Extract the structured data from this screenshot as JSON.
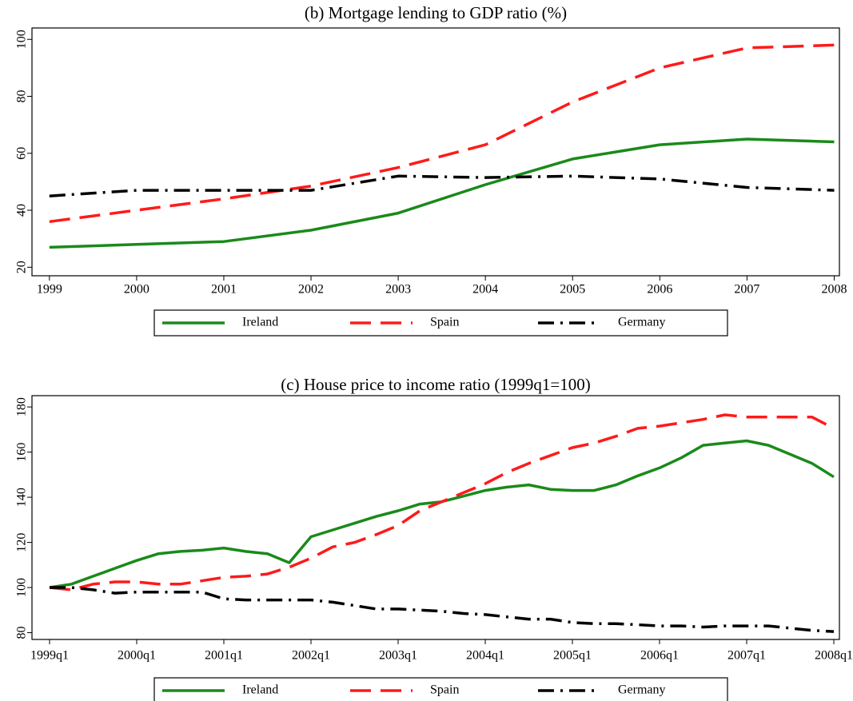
{
  "chart_data": [
    {
      "type": "line",
      "title": "(b) Mortgage lending to GDP ratio (%)",
      "x": [
        1999,
        2000,
        2001,
        2002,
        2003,
        2004,
        2005,
        2006,
        2007,
        2008
      ],
      "xlim": [
        1998.8,
        2008.06
      ],
      "xticks": [
        1999,
        2000,
        2001,
        2002,
        2003,
        2004,
        2005,
        2006,
        2007,
        2008
      ],
      "ylim": [
        17,
        104
      ],
      "yticks": [
        20,
        40,
        60,
        80,
        100
      ],
      "legend": "bottom",
      "series": [
        {
          "name": "Ireland",
          "color": "#1a8a1a",
          "style": "solid",
          "values": [
            27,
            28,
            29,
            33,
            39,
            49,
            58,
            63,
            65,
            64
          ]
        },
        {
          "name": "Spain",
          "color": "#ff1a1a",
          "style": "dashed",
          "values": [
            36,
            40,
            44,
            48.5,
            55,
            63,
            78,
            90,
            97,
            98
          ]
        },
        {
          "name": "Germany",
          "color": "#000000",
          "style": "dashdot",
          "values": [
            45,
            47,
            47,
            47,
            52,
            51.5,
            52,
            51,
            48,
            47
          ]
        }
      ]
    },
    {
      "type": "line",
      "title": "(c) House price to income ratio (1999q1=100)",
      "categories": [
        "1999q1",
        null,
        null,
        null,
        "2000q1",
        null,
        null,
        null,
        "2001q1",
        null,
        null,
        null,
        "2002q1",
        null,
        null,
        null,
        "2003q1",
        null,
        null,
        null,
        "2004q1",
        null,
        null,
        null,
        "2005q1",
        null,
        null,
        null,
        "2006q1",
        null,
        null,
        null,
        "2007q1",
        null,
        null,
        null,
        "2008q1"
      ],
      "ylim": [
        77,
        185
      ],
      "yticks": [
        80,
        100,
        120,
        140,
        160,
        180
      ],
      "legend": "bottom",
      "series": [
        {
          "name": "Ireland",
          "color": "#1a8a1a",
          "style": "solid",
          "values": [
            100,
            101.5,
            105,
            108.5,
            112,
            115,
            116,
            116.5,
            117.5,
            116,
            115,
            111,
            122.5,
            125.5,
            128.5,
            131.5,
            134,
            137,
            138,
            140.5,
            143,
            144.5,
            145.5,
            143.5,
            143,
            143,
            145.5,
            149.5,
            153,
            157.5,
            163,
            164,
            165,
            163,
            159,
            155,
            149
          ]
        },
        {
          "name": "Spain",
          "color": "#ff1a1a",
          "style": "dashed",
          "values": [
            100,
            99,
            101.5,
            102.5,
            102.5,
            101.5,
            101.5,
            103,
            104.5,
            105,
            106,
            109,
            113,
            118,
            120,
            123.5,
            127.5,
            134,
            138,
            142,
            146,
            151,
            155,
            158.5,
            162,
            164,
            167,
            170.5,
            171.5,
            173,
            174.5,
            176.5,
            175.5,
            175.5,
            175.5,
            175.5,
            170.5
          ]
        },
        {
          "name": "Germany",
          "color": "#000000",
          "style": "dashdot",
          "values": [
            100,
            100,
            99,
            97.5,
            98,
            98,
            98,
            98,
            95,
            94.5,
            94.5,
            94.5,
            94.5,
            93.5,
            92,
            90.5,
            90.5,
            90,
            89.5,
            88.5,
            88,
            87,
            86,
            86,
            84.5,
            84,
            84,
            83.5,
            83,
            83,
            82.5,
            83,
            83,
            83,
            82,
            81,
            80.5
          ]
        }
      ]
    }
  ]
}
